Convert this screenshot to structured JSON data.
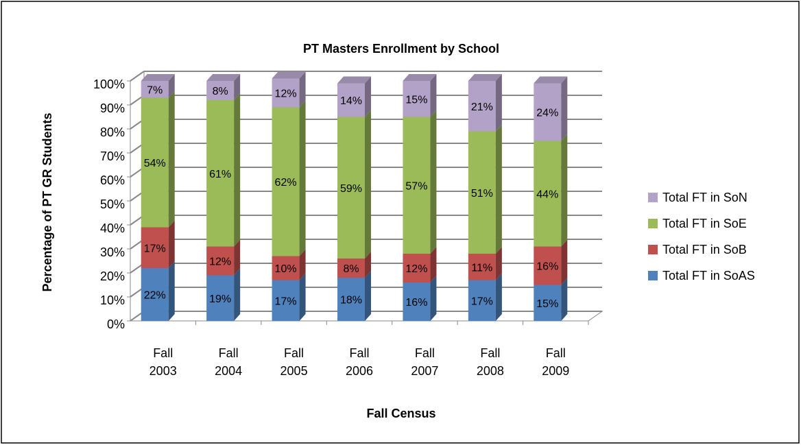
{
  "chart_data": {
    "type": "bar",
    "stacked": true,
    "title": "PT Masters Enrollment by School",
    "x_label": "Fall Census",
    "y_label": "Percentage of PT GR Students",
    "categories": [
      "Fall 2003",
      "Fall 2004",
      "Fall 2005",
      "Fall 2006",
      "Fall 2007",
      "Fall 2008",
      "Fall 2009"
    ],
    "series": [
      {
        "name": "Total FT in SoAS",
        "color": "#4f81bd",
        "values": [
          22,
          19,
          17,
          18,
          16,
          17,
          15
        ],
        "value_labels": [
          "22%",
          "19%",
          "17%",
          "18%",
          "16%",
          "17%",
          "15%"
        ]
      },
      {
        "name": "Total FT in SoB",
        "color": "#c0504d",
        "values": [
          17,
          12,
          10,
          8,
          12,
          11,
          16
        ],
        "value_labels": [
          "17%",
          "12%",
          "10%",
          "8%",
          "12%",
          "11%",
          "16%"
        ]
      },
      {
        "name": "Total FT in SoE",
        "color": "#9bbb59",
        "values": [
          54,
          61,
          62,
          59,
          57,
          51,
          44
        ],
        "value_labels": [
          "54%",
          "61%",
          "62%",
          "59%",
          "57%",
          "51%",
          "44%"
        ]
      },
      {
        "name": "Total FT in SoN",
        "color": "#b3a2c7",
        "values": [
          7,
          8,
          12,
          14,
          15,
          21,
          24
        ],
        "value_labels": [
          "7%",
          "8%",
          "12%",
          "14%",
          "15%",
          "21%",
          "24%"
        ]
      }
    ],
    "ylim": [
      0,
      100
    ],
    "yticks": [
      {
        "value": 0,
        "label": "0%"
      },
      {
        "value": 10,
        "label": "10%"
      },
      {
        "value": 20,
        "label": "20%"
      },
      {
        "value": 30,
        "label": "30%"
      },
      {
        "value": 40,
        "label": "40%"
      },
      {
        "value": 50,
        "label": "50%"
      },
      {
        "value": 60,
        "label": "60%"
      },
      {
        "value": 70,
        "label": "70%"
      },
      {
        "value": 80,
        "label": "80%"
      },
      {
        "value": 90,
        "label": "90%"
      },
      {
        "value": 100,
        "label": "100%"
      }
    ],
    "grid": true,
    "legend": "right"
  }
}
